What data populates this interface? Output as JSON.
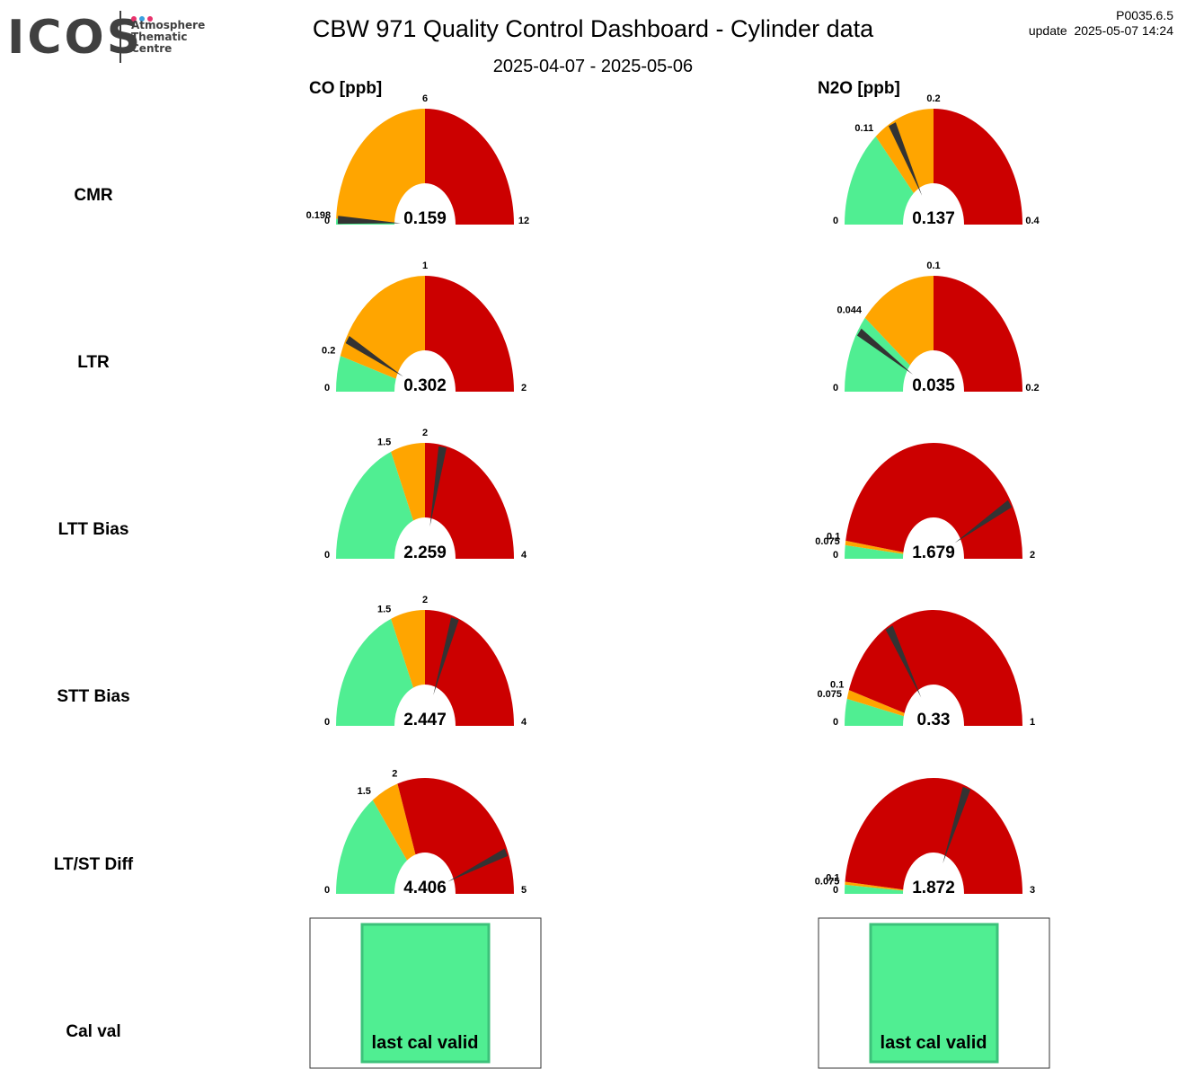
{
  "header": {
    "logo_text": "ICOS",
    "logo_lines": [
      "Atmosphere",
      "Thematic",
      "Centre"
    ],
    "logo_dot_colors": [
      "#e8336d",
      "#3aa0e0",
      "#e8336d"
    ],
    "title": "CBW 971 Quality Control Dashboard - Cylinder data",
    "date_range": "2025-04-07 - 2025-05-06",
    "version": "P0035.6.5",
    "update_label": "update",
    "update_time": "2025-05-07 14:24"
  },
  "colors": {
    "good": "#50ee92",
    "warn": "#ffa500",
    "bad": "#cc0000",
    "needle": "#333333"
  },
  "chart_data": {
    "type": "gauge",
    "columns": [
      "CO [ppb]",
      "N2O [ppb]"
    ],
    "rows": [
      "CMR",
      "LTR",
      "LTT Bias",
      "STT Bias",
      "LT/ST Diff",
      "Cal val"
    ],
    "gauges": [
      {
        "row": "CMR",
        "cells": [
          {
            "value": "0.159",
            "min": 0,
            "max": 12,
            "min_label": "0",
            "max_label": "12",
            "thresholds": [
              {
                "value": 0.198,
                "label": "0.198"
              },
              {
                "value": 6,
                "label": "6"
              }
            ]
          },
          {
            "value": "0.137",
            "min": 0,
            "max": 0.4,
            "min_label": "0",
            "max_label": "0.4",
            "thresholds": [
              {
                "value": 0.11,
                "label": "0.11"
              },
              {
                "value": 0.2,
                "label": "0.2"
              }
            ]
          }
        ]
      },
      {
        "row": "LTR",
        "cells": [
          {
            "value": "0.302",
            "min": 0,
            "max": 2,
            "min_label": "0",
            "max_label": "2",
            "thresholds": [
              {
                "value": 0.2,
                "label": "0.2"
              },
              {
                "value": 1,
                "label": "1"
              }
            ]
          },
          {
            "value": "0.035",
            "min": 0,
            "max": 0.2,
            "min_label": "0",
            "max_label": "0.2",
            "thresholds": [
              {
                "value": 0.044,
                "label": "0.044"
              },
              {
                "value": 0.1,
                "label": "0.1"
              }
            ]
          }
        ]
      },
      {
        "row": "LTT Bias",
        "cells": [
          {
            "value": "2.259",
            "min": 0,
            "max": 4,
            "min_label": "0",
            "max_label": "4",
            "thresholds": [
              {
                "value": 1.5,
                "label": "1.5"
              },
              {
                "value": 2,
                "label": "2"
              }
            ]
          },
          {
            "value": "1.679",
            "min": 0,
            "max": 2,
            "min_label": "0",
            "max_label": "2",
            "thresholds": [
              {
                "value": 0.075,
                "label": "0.075"
              },
              {
                "value": 0.1,
                "label": "0.1"
              }
            ]
          }
        ]
      },
      {
        "row": "STT Bias",
        "cells": [
          {
            "value": "2.447",
            "min": 0,
            "max": 4,
            "min_label": "0",
            "max_label": "4",
            "thresholds": [
              {
                "value": 1.5,
                "label": "1.5"
              },
              {
                "value": 2,
                "label": "2"
              }
            ]
          },
          {
            "value": "0.33",
            "min": 0,
            "max": 1,
            "min_label": "0",
            "max_label": "1",
            "thresholds": [
              {
                "value": 0.075,
                "label": "0.075"
              },
              {
                "value": 0.1,
                "label": "0.1"
              }
            ]
          }
        ]
      },
      {
        "row": "LT/ST Diff",
        "cells": [
          {
            "value": "4.406",
            "min": 0,
            "max": 5,
            "min_label": "0",
            "max_label": "5",
            "thresholds": [
              {
                "value": 1.5,
                "label": "1.5"
              },
              {
                "value": 2,
                "label": "2"
              }
            ]
          },
          {
            "value": "1.872",
            "min": 0,
            "max": 3,
            "min_label": "0",
            "max_label": "3",
            "thresholds": [
              {
                "value": 0.075,
                "label": "0.075"
              },
              {
                "value": 0.1,
                "label": "0.1"
              }
            ]
          }
        ]
      }
    ],
    "cal_val": [
      {
        "status": "last cal valid",
        "color": "#50ee92"
      },
      {
        "status": "last cal valid",
        "color": "#50ee92"
      }
    ]
  }
}
